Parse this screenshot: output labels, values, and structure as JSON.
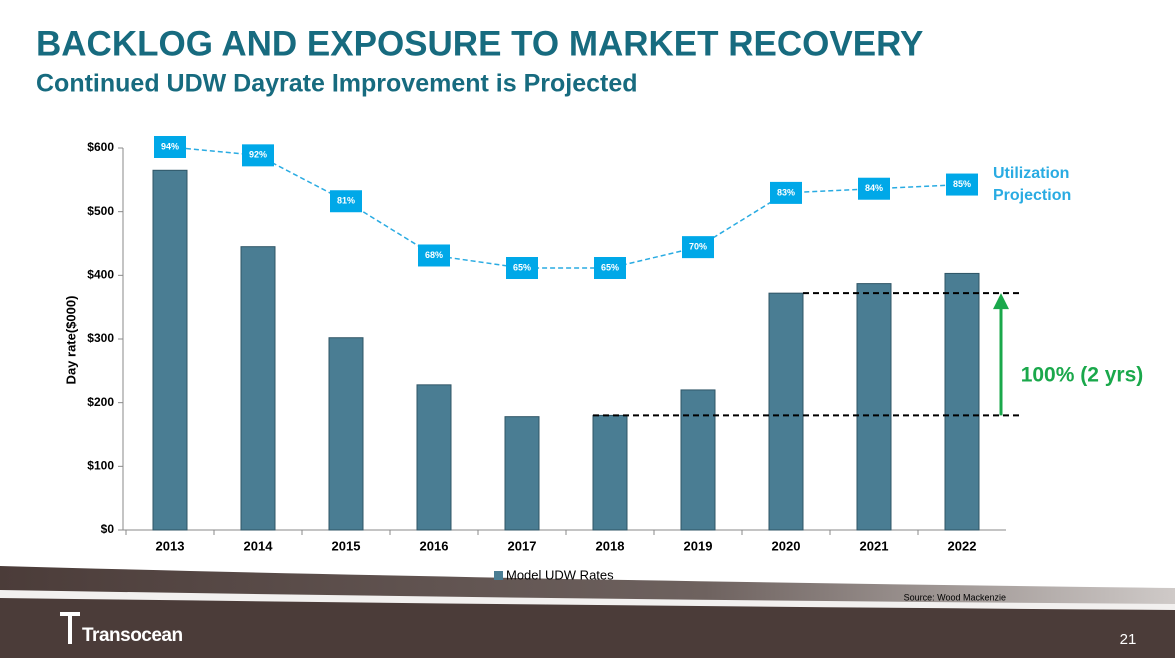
{
  "chart_data": {
    "type": "bar",
    "title": "BACKLOG AND EXPOSURE TO MARKET RECOVERY",
    "subtitle": "Continued UDW Dayrate Improvement is Projected",
    "y_label": "Day rate($000)",
    "categories": [
      "2013",
      "2014",
      "2015",
      "2016",
      "2017",
      "2018",
      "2019",
      "2020",
      "2021",
      "2022"
    ],
    "series": [
      {
        "name": "Model UDW Rates",
        "color": "#4a7d93",
        "values": [
          565,
          445,
          302,
          228,
          178,
          180,
          220,
          372,
          387,
          403
        ]
      },
      {
        "name": "Utilization Projection",
        "color": "#29abe2",
        "axis": "y2",
        "values": [
          94,
          92,
          81,
          68,
          65,
          65,
          70,
          83,
          84,
          85
        ],
        "value_labels": [
          "94%",
          "92%",
          "81%",
          "68%",
          "65%",
          "65%",
          "70%",
          "83%",
          "84%",
          "85%"
        ]
      }
    ],
    "ylim": [
      0,
      600
    ],
    "yticks": [
      {
        "value": 0,
        "label": "$0"
      },
      {
        "value": 100,
        "label": "$100"
      },
      {
        "value": 200,
        "label": "$200"
      },
      {
        "value": 300,
        "label": "$300"
      },
      {
        "value": 400,
        "label": "$400"
      },
      {
        "value": 500,
        "label": "$500"
      },
      {
        "value": 600,
        "label": "$600"
      }
    ],
    "annotation": "100% (2 yrs)",
    "source": "Source:  Wood Mackenzie"
  },
  "footer": {
    "logo": "Transocean",
    "page_number": "21"
  }
}
